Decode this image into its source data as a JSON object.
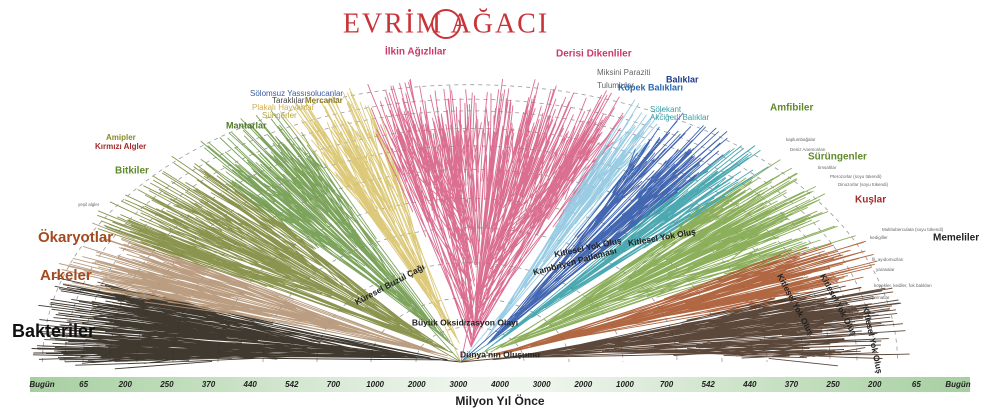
{
  "header": {
    "title": "EVRİM AĞACI"
  },
  "groups": [
    {
      "label": "Bakteriler"
    },
    {
      "label": "Arkeler"
    },
    {
      "label": "Ökaryotlar"
    },
    {
      "label": "Bitkiler"
    },
    {
      "label": "Kırmızı Algler"
    },
    {
      "label": "Amipler"
    },
    {
      "label": "Mantarlar"
    },
    {
      "label": "Süngerler"
    },
    {
      "label": "Plakalı Hayvanlar"
    },
    {
      "label": "Taraklılar"
    },
    {
      "label": "Mercanlar"
    },
    {
      "label": "Sölomsuz Yassısolucanlar"
    },
    {
      "label": "İlkin Ağızlılar"
    },
    {
      "label": "Derisi Dikenliler"
    },
    {
      "label": "Miksini Paraziti"
    },
    {
      "label": "Tulumlular"
    },
    {
      "label": "Balıklar"
    },
    {
      "label": "Köpek Balıkları"
    },
    {
      "label": "Sölekant"
    },
    {
      "label": "Akciğerli Balıklar"
    },
    {
      "label": "Amfibiler"
    },
    {
      "label": "Sürüngenler"
    },
    {
      "label": "Kuşlar"
    },
    {
      "label": "Memeliler"
    }
  ],
  "events": [
    {
      "label": "Dünya'nın Oluşumu"
    },
    {
      "label": "Büyük Oksidizasyon Olayı"
    },
    {
      "label": "Küresel Buzul Çağı"
    },
    {
      "label": "Kambriyen Patlaması"
    },
    {
      "label": "Kitlesel Yok Oluş"
    },
    {
      "label": "Kitlesel Yok Oluş"
    },
    {
      "label": "Kitlesel Yok Oluş"
    },
    {
      "label": "Kitlesel Yok Oluş"
    },
    {
      "label": "Kitlesel Yok Oluş"
    }
  ],
  "small_labels": [
    "Multituberculata (soyu tükendi)",
    "kedigiller",
    "fil, ayıdomuzları",
    "yarasalar",
    "köpekler, kediler, fok balıkları",
    "primatlar",
    "Dinozorlar (soyu tükendi)",
    "Pterozorlar (soyu tükendi)",
    "timsahlar",
    "kaplumbağalar",
    "yeşil algler",
    "Deniz Anemonları"
  ],
  "timeline": {
    "label": "Milyon Yıl Önce",
    "ticks": [
      "Bugün",
      65,
      200,
      250,
      370,
      440,
      542,
      700,
      1000,
      2000,
      3000,
      4000,
      3000,
      2000,
      1000,
      700,
      542,
      440,
      370,
      250,
      200,
      65,
      "Bugün"
    ]
  }
}
